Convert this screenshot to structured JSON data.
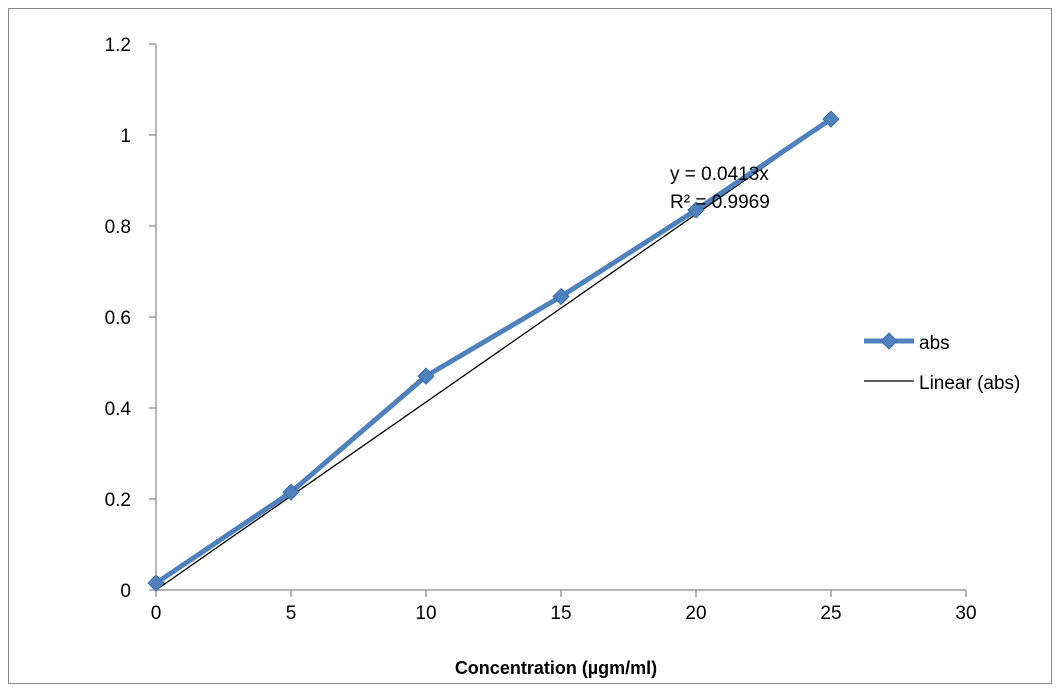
{
  "chart_data": {
    "type": "scatter",
    "title": "",
    "xlabel": "Concentration (µgm/ml)",
    "ylabel": "",
    "xlim": [
      0,
      30
    ],
    "ylim": [
      0,
      1.2
    ],
    "x_ticks": [
      0,
      5,
      10,
      15,
      20,
      25,
      30
    ],
    "y_ticks": [
      0,
      0.2,
      0.4,
      0.6,
      0.8,
      1,
      1.2
    ],
    "x_tick_labels": [
      "0",
      "5",
      "10",
      "15",
      "20",
      "25",
      "30"
    ],
    "y_tick_labels": [
      "0",
      "0.2",
      "0.4",
      "0.6",
      "0.8",
      "1",
      "1.2"
    ],
    "grid": false,
    "legend_position": "right",
    "series": [
      {
        "name": "abs",
        "x": [
          0,
          5,
          10,
          15,
          20,
          25
        ],
        "values": [
          0.015,
          0.215,
          0.47,
          0.645,
          0.835,
          1.035
        ],
        "color": "#4f81bd",
        "marker": "diamond"
      }
    ],
    "trendline": {
      "name": "Linear (abs)",
      "slope": 0.0413,
      "intercept": 0,
      "x_range": [
        0,
        25
      ],
      "color": "#000000",
      "equation": "y = 0.0413x",
      "r_squared": "R² = 0.9969"
    }
  }
}
